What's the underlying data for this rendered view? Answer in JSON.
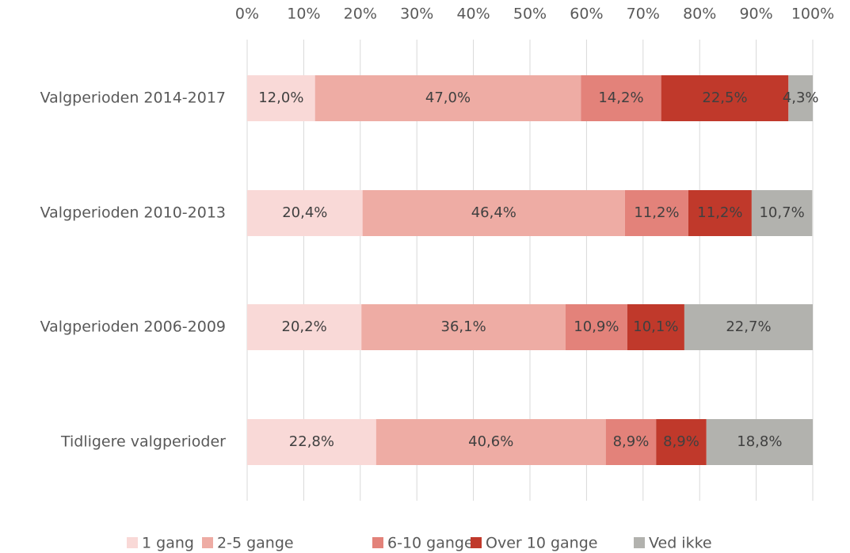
{
  "chart_data": {
    "type": "stacked-bar-horizontal",
    "categories": [
      "Valgperioden 2014-2017",
      "Valgperioden 2010-2013",
      "Valgperioden 2006-2009",
      "Tidligere valgperioder"
    ],
    "series": [
      {
        "name": "1 gang",
        "color": "#f9d9d7",
        "values": [
          12.0,
          20.4,
          20.2,
          22.8
        ],
        "value_labels": [
          "12,0%",
          "20,4%",
          "20,2%",
          "22,8%"
        ]
      },
      {
        "name": "2-5 gange",
        "color": "#eeaca4",
        "values": [
          47.0,
          46.4,
          36.1,
          40.6
        ],
        "value_labels": [
          "47,0%",
          "46,4%",
          "36,1%",
          "40,6%"
        ]
      },
      {
        "name": "6-10 gange",
        "color": "#e3827a",
        "values": [
          14.2,
          11.2,
          10.9,
          8.9
        ],
        "value_labels": [
          "14,2%",
          "11,2%",
          "10,9%",
          "8,9%"
        ]
      },
      {
        "name": "Over 10 gange",
        "color": "#c0392b",
        "values": [
          22.5,
          11.2,
          10.1,
          8.9
        ],
        "value_labels": [
          "22,5%",
          "11,2%",
          "10,1%",
          "8,9%"
        ]
      },
      {
        "name": "Ved ikke",
        "color": "#b2b2ae",
        "values": [
          4.3,
          10.7,
          22.7,
          18.8
        ],
        "value_labels": [
          "4,3%",
          "10,7%",
          "22,7%",
          "18,8%"
        ]
      }
    ],
    "xlim": [
      0,
      100
    ],
    "xticks": [
      {
        "value": 0,
        "label": "0%"
      },
      {
        "value": 10,
        "label": "10%"
      },
      {
        "value": 20,
        "label": "20%"
      },
      {
        "value": 30,
        "label": "30%"
      },
      {
        "value": 40,
        "label": "40%"
      },
      {
        "value": 50,
        "label": "50%"
      },
      {
        "value": 60,
        "label": "60%"
      },
      {
        "value": 70,
        "label": "70%"
      },
      {
        "value": 80,
        "label": "80%"
      },
      {
        "value": 90,
        "label": "90%"
      },
      {
        "value": 100,
        "label": "100%"
      }
    ],
    "grid": true,
    "legend": "bottom"
  }
}
